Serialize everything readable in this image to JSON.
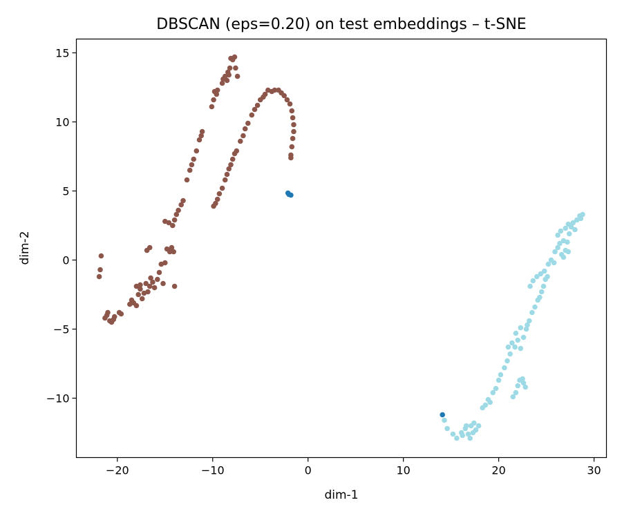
{
  "chart_data": {
    "type": "scatter",
    "title": "DBSCAN (eps=0.20) on test embeddings – t-SNE",
    "xlabel": "dim-1",
    "ylabel": "dim-2",
    "xlim": [
      -24.3,
      31.3
    ],
    "ylim": [
      -14.3,
      16.0
    ],
    "x_ticks": [
      -20,
      -10,
      0,
      10,
      20,
      30
    ],
    "y_ticks": [
      -10,
      -5,
      0,
      5,
      10,
      15
    ],
    "x_tick_labels": [
      "−20",
      "−10",
      "0",
      "10",
      "20",
      "30"
    ],
    "y_tick_labels": [
      "−10",
      "−5",
      "0",
      "5",
      "10",
      "15"
    ],
    "grid": false,
    "legend": "none",
    "series": [
      {
        "color": "#8c564b",
        "points": [
          [
            -21.7,
            0.3
          ],
          [
            -21.8,
            -0.7
          ],
          [
            -21.9,
            -1.2
          ],
          [
            -21.3,
            -4.2
          ],
          [
            -21.1,
            -4.0
          ],
          [
            -21.0,
            -3.8
          ],
          [
            -20.8,
            -4.4
          ],
          [
            -20.6,
            -4.5
          ],
          [
            -20.4,
            -4.3
          ],
          [
            -20.3,
            -4.1
          ],
          [
            -19.8,
            -3.8
          ],
          [
            -19.6,
            -3.9
          ],
          [
            -18.7,
            -3.2
          ],
          [
            -18.5,
            -2.9
          ],
          [
            -18.3,
            -3.1
          ],
          [
            -18.0,
            -3.3
          ],
          [
            -17.8,
            -2.5
          ],
          [
            -17.6,
            -2.1
          ],
          [
            -17.4,
            -2.8
          ],
          [
            -17.2,
            -2.4
          ],
          [
            -17.0,
            -1.7
          ],
          [
            -16.8,
            -2.3
          ],
          [
            -16.6,
            -1.9
          ],
          [
            -16.5,
            -1.3
          ],
          [
            -16.3,
            -1.6
          ],
          [
            -16.1,
            -2.0
          ],
          [
            -15.8,
            -1.4
          ],
          [
            -15.6,
            -0.9
          ],
          [
            -15.4,
            -0.3
          ],
          [
            -15.2,
            -1.7
          ],
          [
            -15.0,
            -0.2
          ],
          [
            -14.8,
            0.8
          ],
          [
            -14.5,
            0.6
          ],
          [
            -14.3,
            0.9
          ],
          [
            -14.1,
            0.6
          ],
          [
            -14.0,
            -1.9
          ],
          [
            -18.0,
            -1.9
          ],
          [
            -16.9,
            0.7
          ],
          [
            -16.6,
            0.9
          ],
          [
            -17.6,
            -1.8
          ],
          [
            -15.0,
            2.8
          ],
          [
            -14.6,
            2.7
          ],
          [
            -14.2,
            2.5
          ],
          [
            -14.0,
            2.9
          ],
          [
            -13.8,
            3.3
          ],
          [
            -13.6,
            3.6
          ],
          [
            -13.3,
            4.0
          ],
          [
            -13.1,
            4.3
          ],
          [
            -12.7,
            5.8
          ],
          [
            -12.4,
            6.5
          ],
          [
            -12.2,
            6.9
          ],
          [
            -12.0,
            7.3
          ],
          [
            -11.7,
            7.9
          ],
          [
            -11.4,
            8.7
          ],
          [
            -11.2,
            9.0
          ],
          [
            -11.1,
            9.3
          ],
          [
            -10.1,
            11.1
          ],
          [
            -9.9,
            11.6
          ],
          [
            -9.8,
            12.2
          ],
          [
            -9.6,
            12.0
          ],
          [
            -9.5,
            12.3
          ],
          [
            -9.0,
            12.8
          ],
          [
            -8.9,
            13.1
          ],
          [
            -8.7,
            13.3
          ],
          [
            -8.5,
            13.0
          ],
          [
            -8.4,
            13.6
          ],
          [
            -8.2,
            13.9
          ],
          [
            -8.1,
            14.6
          ],
          [
            -7.9,
            14.5
          ],
          [
            -7.7,
            14.7
          ],
          [
            -7.6,
            13.9
          ],
          [
            -7.4,
            13.3
          ],
          [
            -8.3,
            13.4
          ],
          [
            -9.9,
            3.9
          ],
          [
            -9.7,
            4.1
          ],
          [
            -9.5,
            4.4
          ],
          [
            -9.3,
            4.8
          ],
          [
            -9.0,
            5.2
          ],
          [
            -8.7,
            5.8
          ],
          [
            -8.5,
            6.2
          ],
          [
            -8.3,
            6.6
          ],
          [
            -8.1,
            6.9
          ],
          [
            -7.9,
            7.3
          ],
          [
            -7.7,
            7.7
          ],
          [
            -7.5,
            7.9
          ],
          [
            -7.1,
            8.6
          ],
          [
            -6.8,
            9.0
          ],
          [
            -6.6,
            9.5
          ],
          [
            -6.3,
            9.9
          ],
          [
            -5.9,
            10.5
          ],
          [
            -5.6,
            10.9
          ],
          [
            -5.3,
            11.2
          ],
          [
            -5.0,
            11.6
          ],
          [
            -4.7,
            11.8
          ],
          [
            -4.5,
            12.0
          ],
          [
            -4.2,
            12.3
          ],
          [
            -3.8,
            12.2
          ],
          [
            -3.5,
            12.3
          ],
          [
            -3.1,
            12.3
          ],
          [
            -2.8,
            12.1
          ],
          [
            -2.5,
            11.9
          ],
          [
            -2.2,
            11.6
          ],
          [
            -1.9,
            11.3
          ],
          [
            -1.7,
            10.8
          ],
          [
            -1.6,
            10.3
          ],
          [
            -1.5,
            9.8
          ],
          [
            -1.5,
            9.3
          ],
          [
            -1.6,
            8.8
          ],
          [
            -1.7,
            8.2
          ],
          [
            -1.8,
            7.6
          ],
          [
            -1.8,
            7.4
          ]
        ]
      },
      {
        "color": "#9edae5",
        "points": [
          [
            14.3,
            -11.6
          ],
          [
            14.6,
            -12.2
          ],
          [
            15.2,
            -12.6
          ],
          [
            15.6,
            -12.9
          ],
          [
            16.1,
            -12.5
          ],
          [
            16.5,
            -12.2
          ],
          [
            16.8,
            -12.6
          ],
          [
            17.0,
            -12.9
          ],
          [
            17.1,
            -12.0
          ],
          [
            17.4,
            -11.8
          ],
          [
            17.6,
            -12.3
          ],
          [
            17.9,
            -12.0
          ],
          [
            16.6,
            -12.0
          ],
          [
            16.2,
            -12.7
          ],
          [
            17.3,
            -12.5
          ],
          [
            18.3,
            -10.7
          ],
          [
            18.6,
            -10.5
          ],
          [
            18.9,
            -10.1
          ],
          [
            19.1,
            -10.3
          ],
          [
            19.4,
            -9.6
          ],
          [
            19.7,
            -9.3
          ],
          [
            20.0,
            -8.7
          ],
          [
            20.2,
            -8.3
          ],
          [
            20.6,
            -7.8
          ],
          [
            20.9,
            -7.3
          ],
          [
            21.2,
            -6.8
          ],
          [
            21.0,
            -6.3
          ],
          [
            21.4,
            -6.0
          ],
          [
            21.7,
            -6.3
          ],
          [
            22.0,
            -5.8
          ],
          [
            22.3,
            -6.4
          ],
          [
            22.6,
            -5.6
          ],
          [
            22.9,
            -5.0
          ],
          [
            23.0,
            -4.7
          ],
          [
            23.2,
            -4.4
          ],
          [
            21.8,
            -5.3
          ],
          [
            22.3,
            -4.9
          ],
          [
            21.5,
            -9.9
          ],
          [
            21.8,
            -9.6
          ],
          [
            22.0,
            -9.1
          ],
          [
            22.2,
            -8.7
          ],
          [
            22.6,
            -8.9
          ],
          [
            22.8,
            -9.2
          ],
          [
            22.5,
            -8.6
          ],
          [
            23.5,
            -3.8
          ],
          [
            23.8,
            -3.4
          ],
          [
            24.1,
            -2.9
          ],
          [
            24.3,
            -2.7
          ],
          [
            24.5,
            -2.3
          ],
          [
            24.7,
            -1.9
          ],
          [
            24.9,
            -1.4
          ],
          [
            25.1,
            -1.2
          ],
          [
            23.3,
            -1.9
          ],
          [
            23.6,
            -1.5
          ],
          [
            24.0,
            -1.2
          ],
          [
            24.4,
            -1.0
          ],
          [
            24.8,
            -0.8
          ],
          [
            25.2,
            -0.3
          ],
          [
            25.5,
            0.0
          ],
          [
            25.8,
            -0.2
          ],
          [
            25.9,
            0.6
          ],
          [
            26.2,
            0.9
          ],
          [
            26.4,
            1.2
          ],
          [
            26.6,
            0.4
          ],
          [
            26.8,
            1.4
          ],
          [
            27.0,
            0.7
          ],
          [
            27.2,
            1.3
          ],
          [
            27.4,
            1.9
          ],
          [
            27.6,
            2.4
          ],
          [
            27.8,
            2.7
          ],
          [
            28.0,
            2.2
          ],
          [
            28.2,
            2.9
          ],
          [
            28.5,
            3.2
          ],
          [
            28.8,
            3.3
          ],
          [
            28.6,
            3.0
          ],
          [
            26.2,
            1.8
          ],
          [
            26.5,
            2.1
          ],
          [
            27.0,
            2.3
          ],
          [
            27.3,
            2.6
          ],
          [
            26.8,
            0.2
          ],
          [
            27.3,
            0.6
          ]
        ]
      },
      {
        "color": "#1f77b4",
        "points": [
          [
            -2.1,
            4.85
          ],
          [
            -2.0,
            4.75
          ],
          [
            -1.8,
            4.7
          ],
          [
            14.1,
            -11.2
          ]
        ]
      }
    ]
  }
}
